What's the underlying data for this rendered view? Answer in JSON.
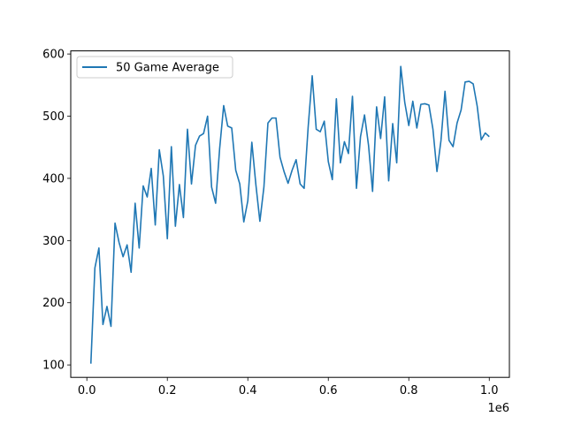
{
  "chart_data": {
    "type": "line",
    "title": "",
    "xlabel": "",
    "ylabel": "",
    "x_offset_label": "1e6",
    "xlim": [
      -0.04,
      1.05
    ],
    "ylim": [
      80,
      605
    ],
    "xticks": [
      0.0,
      0.2,
      0.4,
      0.6,
      0.8,
      1.0
    ],
    "xtick_labels": [
      "0.0",
      "0.2",
      "0.4",
      "0.6",
      "0.8",
      "1.0"
    ],
    "yticks": [
      100,
      200,
      300,
      400,
      500,
      600
    ],
    "ytick_labels": [
      "100",
      "200",
      "300",
      "400",
      "500",
      "600"
    ],
    "grid": false,
    "legend_position": "upper-left",
    "series": [
      {
        "name": "50 Game Average",
        "color": "#1f77b4",
        "x": [
          0.01,
          0.02,
          0.03,
          0.04,
          0.05,
          0.06,
          0.07,
          0.08,
          0.09,
          0.1,
          0.11,
          0.12,
          0.13,
          0.14,
          0.15,
          0.16,
          0.17,
          0.18,
          0.19,
          0.2,
          0.21,
          0.22,
          0.23,
          0.24,
          0.25,
          0.26,
          0.27,
          0.28,
          0.29,
          0.3,
          0.31,
          0.32,
          0.33,
          0.34,
          0.35,
          0.36,
          0.37,
          0.38,
          0.39,
          0.4,
          0.41,
          0.42,
          0.43,
          0.44,
          0.45,
          0.46,
          0.47,
          0.48,
          0.49,
          0.5,
          0.51,
          0.52,
          0.53,
          0.54,
          0.55,
          0.56,
          0.57,
          0.58,
          0.59,
          0.6,
          0.61,
          0.62,
          0.63,
          0.64,
          0.65,
          0.66,
          0.67,
          0.68,
          0.69,
          0.7,
          0.71,
          0.72,
          0.73,
          0.74,
          0.75,
          0.76,
          0.77,
          0.78,
          0.79,
          0.8,
          0.81,
          0.82,
          0.83,
          0.84,
          0.85,
          0.86,
          0.87,
          0.88,
          0.89,
          0.9,
          0.91,
          0.92,
          0.93,
          0.94,
          0.95,
          0.96,
          0.97,
          0.98,
          0.99,
          1.0
        ],
        "y": [
          102,
          256,
          288,
          165,
          194,
          162,
          328,
          297,
          274,
          293,
          249,
          360,
          288,
          388,
          370,
          416,
          325,
          446,
          404,
          303,
          451,
          323,
          390,
          337,
          479,
          391,
          453,
          468,
          472,
          500,
          386,
          360,
          448,
          517,
          484,
          481,
          413,
          391,
          330,
          364,
          458,
          390,
          331,
          386,
          489,
          497,
          497,
          434,
          411,
          392,
          413,
          430,
          391,
          384,
          483,
          565,
          479,
          475,
          492,
          427,
          398,
          528,
          425,
          459,
          440,
          532,
          384,
          467,
          502,
          453,
          379,
          515,
          464,
          531,
          396,
          488,
          425,
          580,
          522,
          485,
          524,
          481,
          519,
          520,
          518,
          479,
          411,
          461,
          540,
          461,
          451,
          489,
          510,
          555,
          556,
          552,
          516,
          462,
          473,
          467
        ]
      }
    ]
  }
}
